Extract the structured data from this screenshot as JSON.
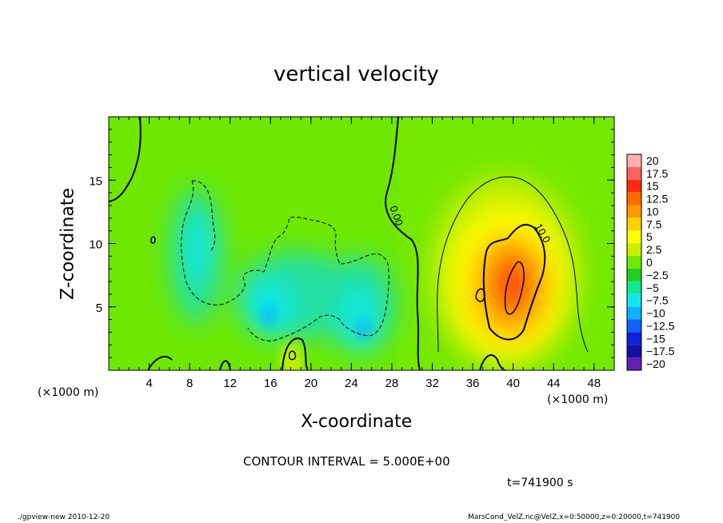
{
  "chart_data": {
    "type": "heatmap",
    "title": "vertical velocity",
    "xlabel": "X-coordinate",
    "ylabel": "Z-coordinate",
    "x_unit": "(×1000 m)",
    "y_unit": "(×1000 m)",
    "x_ticks": [
      4,
      8,
      12,
      16,
      20,
      24,
      28,
      32,
      36,
      40,
      44,
      48
    ],
    "y_ticks": [
      5,
      10,
      15
    ],
    "xlim": [
      0,
      50
    ],
    "ylim": [
      0,
      20
    ],
    "contour_interval_text": "CONTOUR INTERVAL = 5.000E+00",
    "contour_labels": [
      {
        "text": "0.00",
        "x": 28.0,
        "z": 12.3
      },
      {
        "text": "10.0",
        "x": 42.5,
        "z": 10.5
      }
    ],
    "time_text": "t=741900 s",
    "colorbar": {
      "levels": [
        "20",
        "17.5",
        "15",
        "12.5",
        "10",
        "7.5",
        "5",
        "2.5",
        "0",
        "−2.5",
        "−5",
        "−7.5",
        "−10",
        "−12.5",
        "−15",
        "−17.5",
        "−20"
      ],
      "colors": [
        "#ffb0b0",
        "#ff6060",
        "#ff2a10",
        "#ff6a00",
        "#ff9a00",
        "#ffd000",
        "#ffff00",
        "#c8f000",
        "#6ee800",
        "#20d020",
        "#10e890",
        "#10e8e8",
        "#10b0ff",
        "#1060ff",
        "#1020e0",
        "#1010a0",
        "#6020b0"
      ]
    },
    "features": [
      {
        "kind": "updraft",
        "x": 40.0,
        "z": 7.0,
        "peak": 17
      },
      {
        "kind": "downdraft",
        "x": 9.5,
        "z": 10.0,
        "peak": -6
      },
      {
        "kind": "downdraft",
        "x": 16.0,
        "z": 4.5,
        "peak": -9
      },
      {
        "kind": "downdraft",
        "x": 25.0,
        "z": 3.5,
        "peak": -9
      }
    ]
  },
  "footer": {
    "left": "./gpview-new 2010-12-20",
    "right": "MarsCond_VelZ.nc@VelZ,x=0:50000,z=0:20000,t=741900"
  }
}
